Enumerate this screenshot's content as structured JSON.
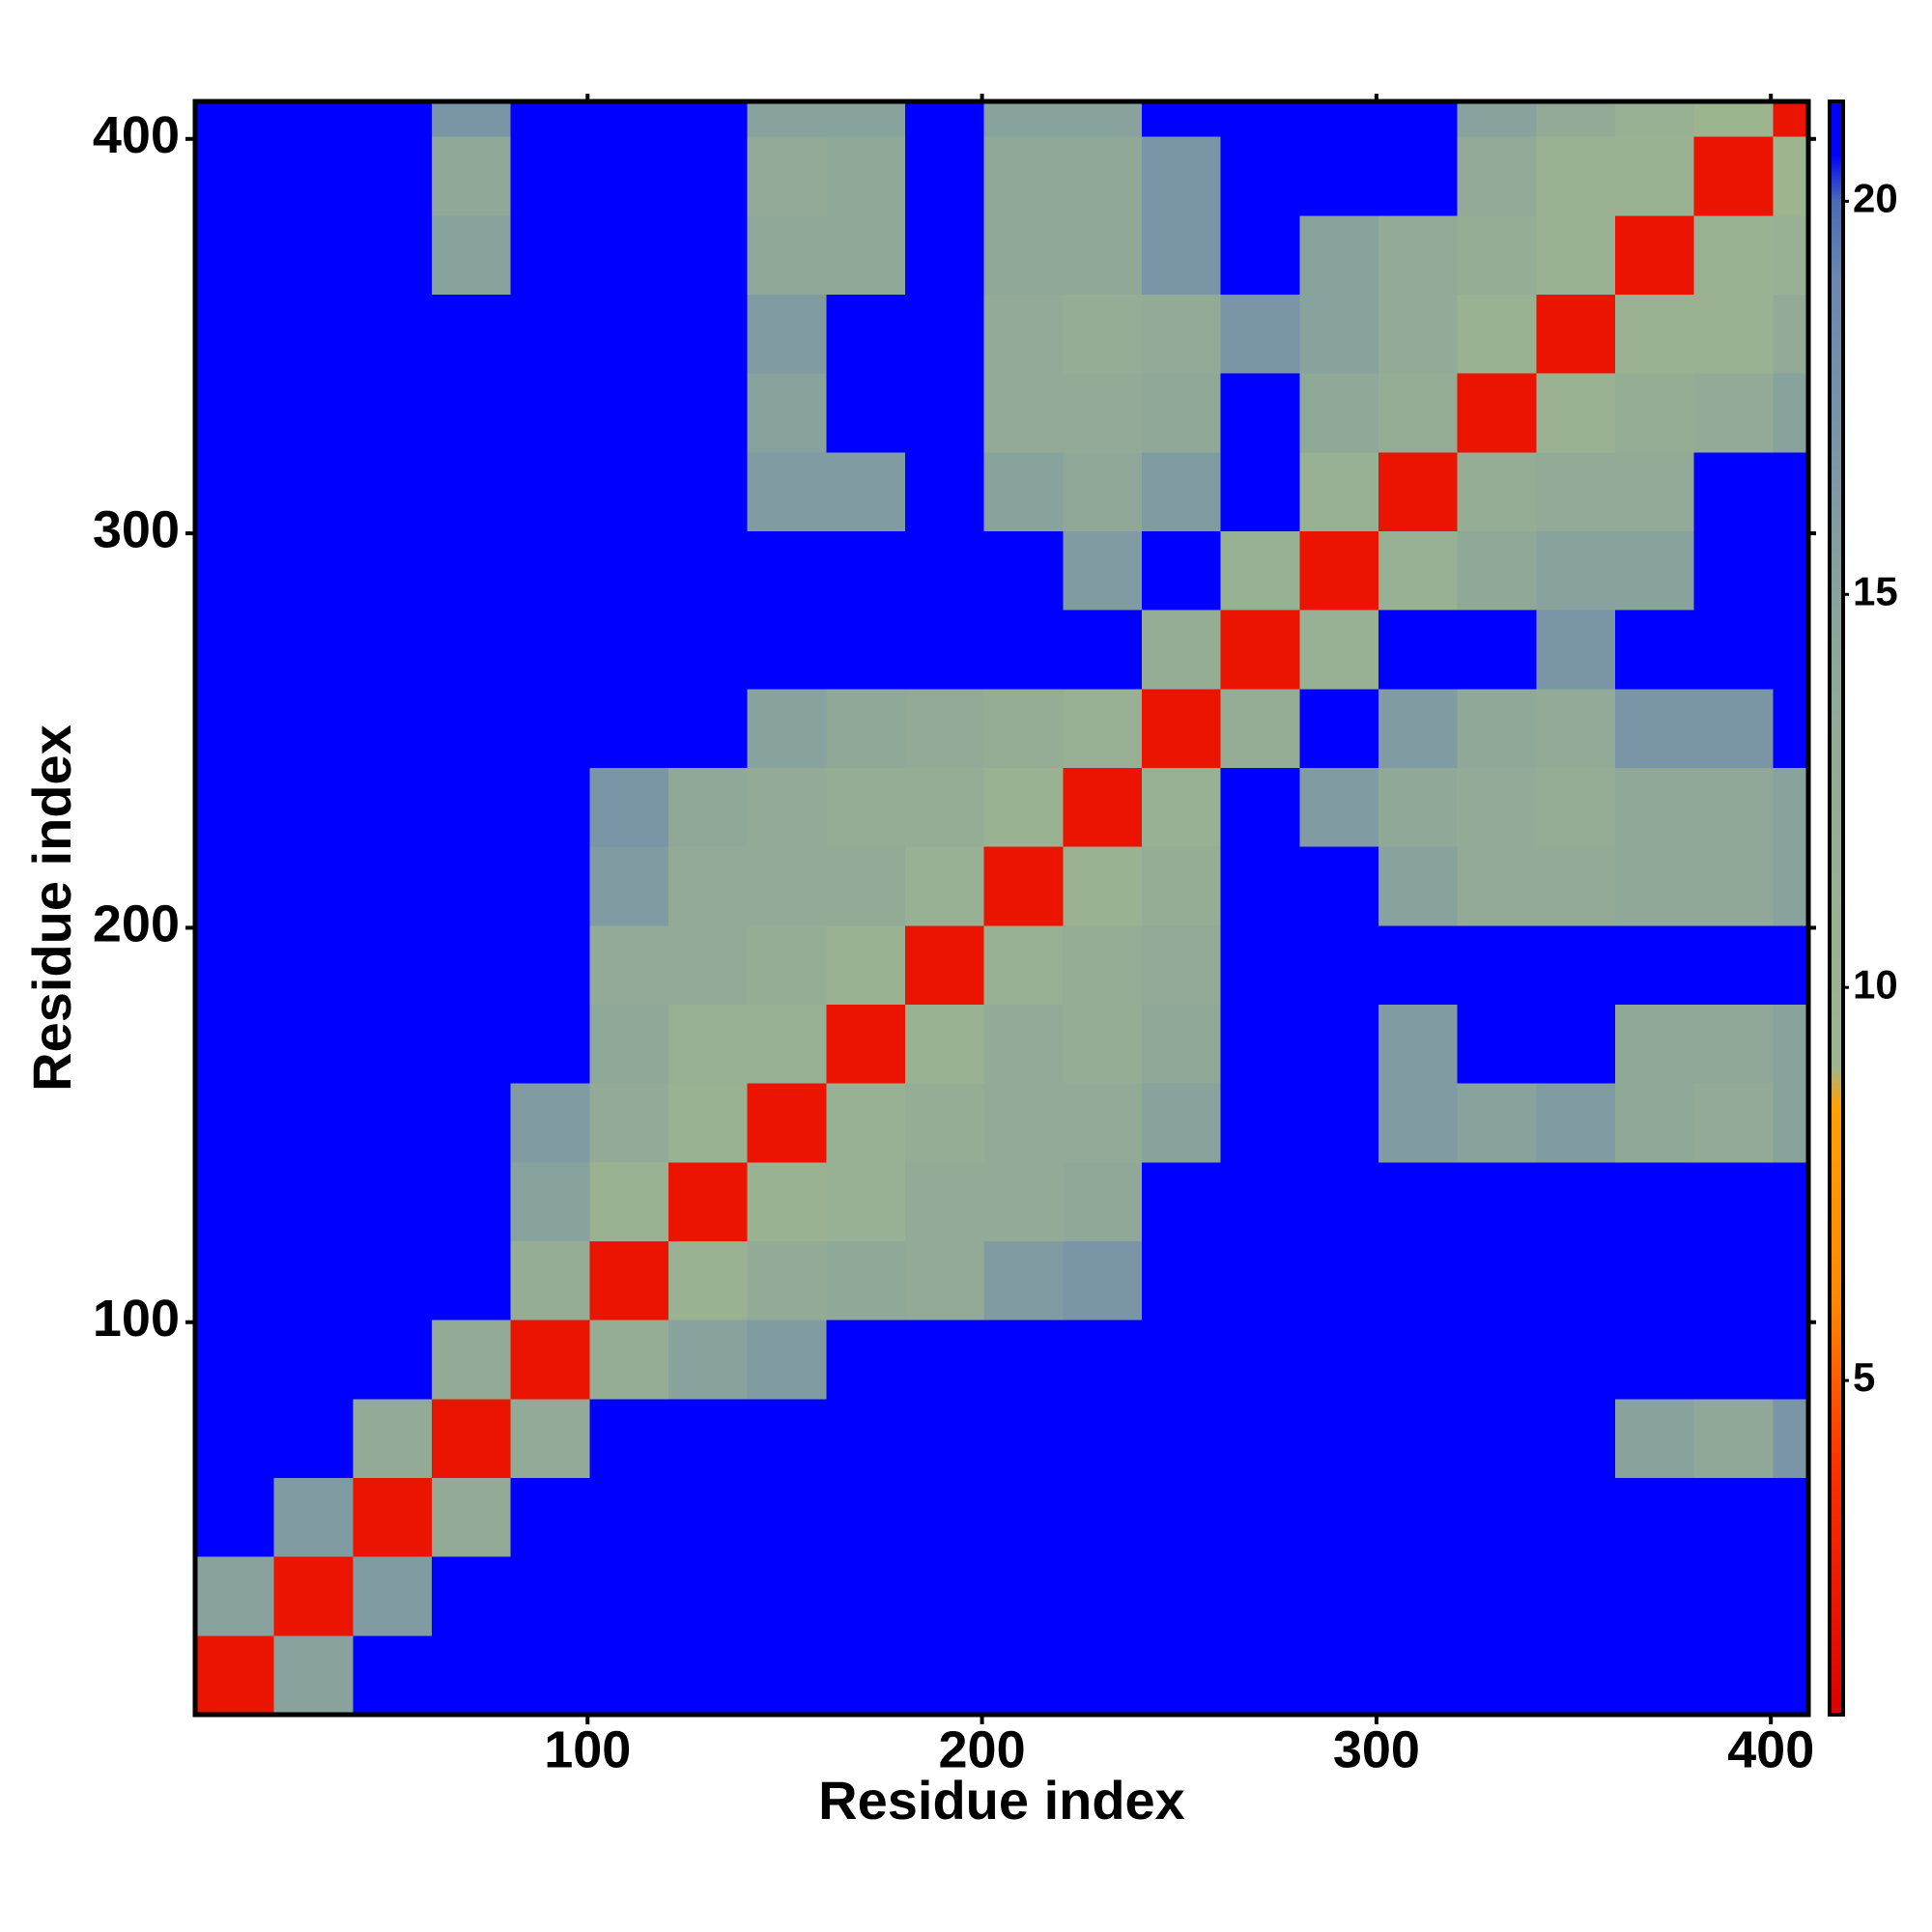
{
  "chart_data": {
    "type": "heatmap",
    "xlabel": "Residue index",
    "ylabel": "Residue index",
    "x_edges": [
      0.5,
      20.5,
      40.5,
      60.5,
      80.5,
      100.5,
      120.5,
      140.5,
      160.5,
      180.5,
      200.5,
      220.5,
      240.5,
      260.5,
      280.5,
      300.5,
      320.5,
      340.5,
      360.5,
      380.5,
      400.5,
      409.5
    ],
    "y_edges": [
      0.5,
      20.5,
      40.5,
      60.5,
      80.5,
      100.5,
      120.5,
      140.5,
      160.5,
      180.5,
      200.5,
      220.5,
      240.5,
      260.5,
      280.5,
      300.5,
      320.5,
      340.5,
      360.5,
      380.5,
      400.5,
      409.5
    ],
    "z": [
      [
        2,
        15,
        21,
        21,
        21,
        21,
        21,
        21,
        21,
        21,
        21,
        21,
        21,
        21,
        21,
        21,
        21,
        21,
        21,
        21,
        21
      ],
      [
        15,
        2,
        16,
        21,
        21,
        21,
        21,
        21,
        21,
        21,
        21,
        21,
        21,
        21,
        21,
        21,
        21,
        21,
        21,
        21,
        21
      ],
      [
        21,
        16,
        2,
        13,
        21,
        21,
        21,
        21,
        21,
        21,
        21,
        21,
        21,
        21,
        21,
        21,
        21,
        21,
        21,
        21,
        21
      ],
      [
        21,
        21,
        13,
        2,
        13,
        21,
        21,
        21,
        21,
        21,
        21,
        21,
        21,
        21,
        21,
        21,
        21,
        21,
        15,
        14,
        17
      ],
      [
        21,
        21,
        21,
        13,
        2,
        12,
        15,
        16,
        21,
        21,
        21,
        21,
        21,
        21,
        21,
        21,
        21,
        21,
        21,
        21,
        21
      ],
      [
        21,
        21,
        21,
        21,
        12,
        2,
        10,
        13,
        14,
        13,
        16,
        17,
        21,
        21,
        21,
        21,
        21,
        21,
        21,
        21,
        21
      ],
      [
        21,
        21,
        21,
        21,
        15,
        10,
        2,
        10,
        11,
        13,
        13,
        14,
        21,
        21,
        21,
        21,
        21,
        21,
        21,
        21,
        21
      ],
      [
        21,
        21,
        21,
        21,
        16,
        13,
        10,
        2,
        11,
        12,
        13,
        13,
        15,
        21,
        21,
        16,
        15,
        16,
        14,
        13,
        15
      ],
      [
        21,
        21,
        21,
        21,
        21,
        14,
        11,
        11,
        2,
        10,
        13,
        12,
        14,
        21,
        21,
        16,
        21,
        21,
        14,
        14,
        15
      ],
      [
        21,
        21,
        21,
        21,
        21,
        13,
        13,
        12,
        10,
        2,
        11,
        12,
        13,
        21,
        21,
        21,
        21,
        21,
        21,
        21,
        21
      ],
      [
        21,
        21,
        21,
        21,
        21,
        16,
        13,
        13,
        13,
        11,
        2,
        10,
        12,
        21,
        21,
        15,
        13,
        13,
        14,
        14,
        15
      ],
      [
        21,
        21,
        21,
        21,
        21,
        17,
        14,
        13,
        12,
        12,
        10,
        2,
        11,
        21,
        16,
        14,
        13,
        12,
        14,
        14,
        15
      ],
      [
        21,
        21,
        21,
        21,
        21,
        21,
        21,
        15,
        14,
        13,
        12,
        11,
        2,
        12,
        21,
        16,
        14,
        13,
        17,
        17,
        21
      ],
      [
        21,
        21,
        21,
        21,
        21,
        21,
        21,
        21,
        21,
        21,
        21,
        21,
        12,
        2,
        11,
        21,
        21,
        17,
        21,
        21,
        21
      ],
      [
        21,
        21,
        21,
        21,
        21,
        21,
        21,
        21,
        21,
        21,
        21,
        16,
        21,
        11,
        2,
        11,
        14,
        15,
        15,
        21,
        21
      ],
      [
        21,
        21,
        21,
        21,
        21,
        21,
        21,
        16,
        16,
        21,
        15,
        14,
        16,
        21,
        11,
        2,
        12,
        13,
        13,
        21,
        21
      ],
      [
        21,
        21,
        21,
        21,
        21,
        21,
        21,
        15,
        21,
        21,
        13,
        13,
        14,
        21,
        14,
        12,
        2,
        10,
        12,
        13,
        15
      ],
      [
        21,
        21,
        21,
        21,
        21,
        21,
        21,
        16,
        21,
        21,
        13,
        12,
        13,
        17,
        15,
        13,
        10,
        2,
        10,
        10,
        13
      ],
      [
        21,
        21,
        21,
        15,
        21,
        21,
        21,
        14,
        14,
        21,
        14,
        14,
        17,
        21,
        15,
        13,
        12,
        10,
        2,
        10,
        11
      ],
      [
        21,
        21,
        21,
        14,
        21,
        21,
        21,
        13,
        14,
        21,
        14,
        14,
        17,
        21,
        21,
        21,
        13,
        10,
        10,
        2,
        9
      ],
      [
        21,
        21,
        21,
        17,
        21,
        21,
        21,
        15,
        15,
        21,
        15,
        15,
        21,
        21,
        21,
        21,
        15,
        13,
        11,
        9,
        2
      ]
    ],
    "xlim": [
      0.5,
      409.5
    ],
    "ylim": [
      0.5,
      409.5
    ],
    "xticks": [
      100,
      200,
      300,
      400
    ],
    "yticks": [
      100,
      200,
      300,
      400
    ],
    "colorscale": [
      [
        0.75,
        "#dd0000"
      ],
      [
        4,
        "#ff3300"
      ],
      [
        6,
        "#ff8800"
      ],
      [
        8.5,
        "#ffa000"
      ],
      [
        9,
        "#9db58f"
      ],
      [
        14,
        "#90a898"
      ],
      [
        19,
        "#6a88b0"
      ],
      [
        20,
        "#4a6ab8"
      ],
      [
        20.6,
        "#0000ff"
      ],
      [
        21.27,
        "#0000ff"
      ]
    ],
    "colorbar": {
      "lim": [
        0.75,
        21.27
      ],
      "ticks": [
        5,
        10,
        15,
        20
      ]
    }
  }
}
